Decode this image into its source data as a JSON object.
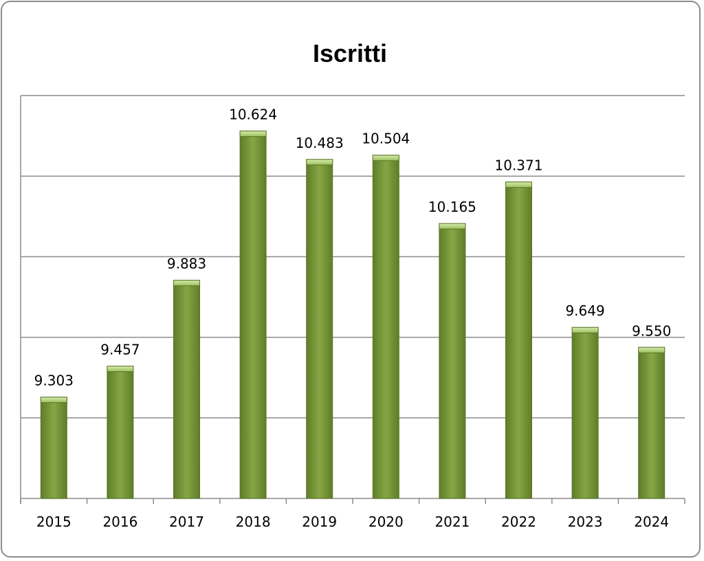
{
  "chart_data": {
    "type": "bar",
    "title": "Iscritti",
    "xlabel": "",
    "ylabel": "",
    "categories": [
      "2015",
      "2016",
      "2017",
      "2018",
      "2019",
      "2020",
      "2021",
      "2022",
      "2023",
      "2024"
    ],
    "values": [
      9303,
      9457,
      9883,
      10624,
      10483,
      10504,
      10165,
      10371,
      9649,
      9550
    ],
    "data_labels": [
      "9.303",
      "9.457",
      "9.883",
      "10.624",
      "10.483",
      "10.504",
      "10.165",
      "10.371",
      "9.649",
      "9.550"
    ],
    "ylim": [
      8800,
      10800
    ],
    "y_gridline_step": 400,
    "y_tick_labels_shown": false,
    "grid": true,
    "legend": "none",
    "bar_color": "#7a9a3c"
  }
}
